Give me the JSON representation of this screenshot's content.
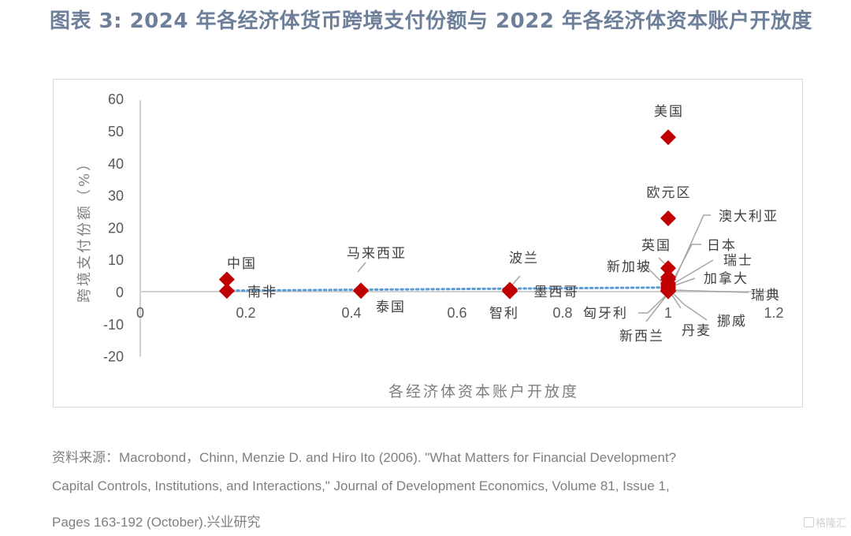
{
  "title": "图表  3:  2024 年各经济体货币跨境支付份额与 2022 年各经济体资本账户开放度",
  "source_lines": [
    "资料来源：Macrobond，Chinn, Menzie D. and Hiro Ito (2006). \"What Matters for Financial Development?",
    "Capital Controls, Institutions, and Interactions,\" Journal of Development Economics, Volume 81, Issue 1,",
    "Pages 163-192 (October).兴业研究"
  ],
  "watermark": "格隆汇",
  "chart_data": {
    "type": "scatter",
    "title": "",
    "xlabel": "各经济体资本账户开放度",
    "ylabel": "跨境支付份额（%）",
    "xlim": [
      0,
      1.2
    ],
    "ylim": [
      -20,
      60
    ],
    "x_ticks": [
      "0",
      "0.2",
      "0.4",
      "0.6",
      "0.8",
      "1",
      "1.2"
    ],
    "x_tick_values": [
      0,
      0.2,
      0.4,
      0.6,
      0.8,
      1.0,
      1.2
    ],
    "y_ticks": [
      "60",
      "50",
      "40",
      "30",
      "20",
      "10",
      "0",
      "-10",
      "-20"
    ],
    "y_tick_values": [
      60,
      50,
      40,
      30,
      20,
      10,
      0,
      -10,
      -20
    ],
    "grid": false,
    "marker_color": "#c00000",
    "trendline_color": "#5b9bd5",
    "trendline": {
      "x": [
        0.164,
        1.0
      ],
      "y": [
        0.3,
        1.3
      ]
    },
    "points": [
      {
        "label": "中国",
        "x": 0.164,
        "y": 3.8
      },
      {
        "label": "南非",
        "x": 0.164,
        "y": 0.2
      },
      {
        "label": "马来西亚",
        "x": 0.418,
        "y": 0.4
      },
      {
        "label": "泰国",
        "x": 0.418,
        "y": 0.2
      },
      {
        "label": "波兰",
        "x": 0.7,
        "y": 0.6
      },
      {
        "label": "智利",
        "x": 0.7,
        "y": 0.1
      },
      {
        "label": "墨西哥",
        "x": 0.7,
        "y": 0.3
      },
      {
        "label": "美国",
        "x": 1.0,
        "y": 48.0
      },
      {
        "label": "欧元区",
        "x": 1.0,
        "y": 22.8
      },
      {
        "label": "英国",
        "x": 1.0,
        "y": 7.3
      },
      {
        "label": "澳大利亚",
        "x": 1.0,
        "y": 4.5
      },
      {
        "label": "日本",
        "x": 1.0,
        "y": 3.8
      },
      {
        "label": "瑞士",
        "x": 1.0,
        "y": 2.6
      },
      {
        "label": "加拿大",
        "x": 1.0,
        "y": 2.1
      },
      {
        "label": "新加坡",
        "x": 1.0,
        "y": 1.5
      },
      {
        "label": "瑞典",
        "x": 1.0,
        "y": 1.0
      },
      {
        "label": "挪威",
        "x": 1.0,
        "y": 0.5
      },
      {
        "label": "丹麦",
        "x": 1.0,
        "y": 0.4
      },
      {
        "label": "新西兰",
        "x": 1.0,
        "y": 0.2
      },
      {
        "label": "匈牙利",
        "x": 1.0,
        "y": 0.1
      }
    ]
  }
}
